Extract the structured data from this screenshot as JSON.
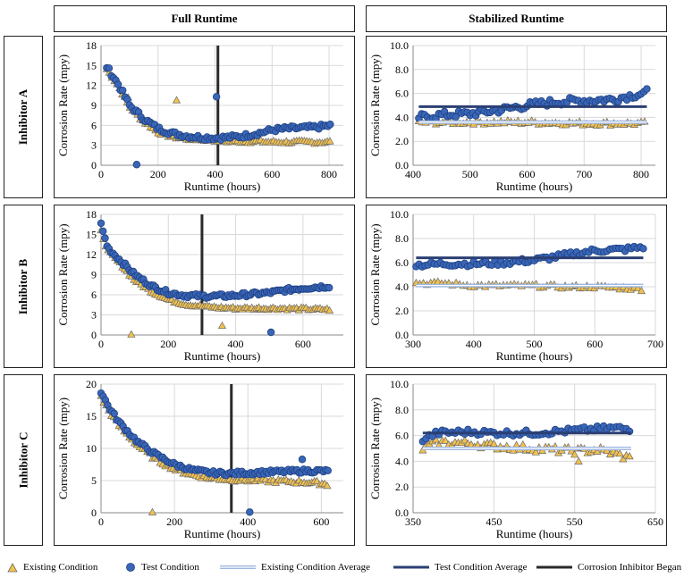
{
  "layout": {
    "col_headers": [
      "Full Runtime",
      "Stabilized Runtime"
    ],
    "row_headers": [
      "Inhibitor A",
      "Inhibitor B",
      "Inhibitor C"
    ]
  },
  "legend": {
    "existing": "Existing Condition",
    "test": "Test Condition",
    "existing_avg": "Existing Condition Average",
    "test_avg": "Test Condition Average",
    "inhibitor": "Corrosion Inhibitor Began"
  },
  "colors": {
    "existing_fill": "#f2c14e",
    "existing_edge": "#6b6b6b",
    "test_fill": "#3a66b8",
    "test_edge": "#1d3f80",
    "existing_avg": "#9fb7e0",
    "test_avg": "#2b3f73",
    "inhibitor_line": "#2a2a2a",
    "grid": "#d9d9d9"
  },
  "chart_data": [
    {
      "id": "A-full",
      "type": "scatter",
      "row": "Inhibitor A",
      "column": "Full Runtime",
      "xlabel": "Runtime (hours)",
      "ylabel": "Corrosion Rate (mpy)",
      "xlim": [
        0,
        850
      ],
      "ylim": [
        0,
        18
      ],
      "xticks": [
        0,
        200,
        400,
        600,
        800
      ],
      "yticks": [
        0,
        3,
        6,
        9,
        12,
        15,
        18
      ],
      "xtick_labels": [
        "0",
        "200",
        "400",
        "600",
        "800"
      ],
      "ytick_labels": [
        "0",
        "3",
        "6",
        "9",
        "12",
        "15",
        "18"
      ],
      "inhibitor_x": 410,
      "series": [
        {
          "key": "test",
          "marker": "circle",
          "curve": [
            [
              20,
              14.8
            ],
            [
              60,
              12.2
            ],
            [
              100,
              9.0
            ],
            [
              150,
              7.0
            ],
            [
              200,
              5.5
            ],
            [
              250,
              4.8
            ],
            [
              300,
              4.4
            ],
            [
              350,
              4.2
            ],
            [
              400,
              4.1
            ],
            [
              450,
              4.2
            ],
            [
              500,
              4.4
            ],
            [
              550,
              4.8
            ],
            [
              600,
              5.3
            ],
            [
              650,
              5.5
            ],
            [
              700,
              5.6
            ],
            [
              750,
              5.7
            ],
            [
              810,
              6.0
            ]
          ],
          "x_step": 8,
          "noise": 0.35,
          "outliers": [
            [
              125,
              0.1
            ],
            [
              405,
              10.3
            ]
          ]
        },
        {
          "key": "existing",
          "marker": "triangle",
          "curve": [
            [
              20,
              14.5
            ],
            [
              60,
              12.0
            ],
            [
              100,
              8.8
            ],
            [
              150,
              6.6
            ],
            [
              200,
              5.0
            ],
            [
              250,
              4.3
            ],
            [
              300,
              4.0
            ],
            [
              350,
              3.9
            ],
            [
              400,
              3.8
            ],
            [
              450,
              3.6
            ],
            [
              500,
              3.6
            ],
            [
              550,
              3.6
            ],
            [
              600,
              3.5
            ],
            [
              650,
              3.5
            ],
            [
              700,
              3.5
            ],
            [
              750,
              3.5
            ],
            [
              810,
              3.5
            ]
          ],
          "x_step": 9,
          "noise": 0.25,
          "outliers": [
            [
              265,
              9.8
            ],
            [
              95,
              10.2
            ]
          ]
        }
      ]
    },
    {
      "id": "A-stab",
      "type": "scatter",
      "row": "Inhibitor A",
      "column": "Stabilized Runtime",
      "xlabel": "Runtime (hours)",
      "ylabel": "Corrosion Rate (mpy)",
      "xlim": [
        400,
        825
      ],
      "ylim": [
        0,
        10
      ],
      "xticks": [
        400,
        500,
        600,
        700,
        800
      ],
      "yticks": [
        0,
        2,
        4,
        6,
        8,
        10
      ],
      "xtick_labels": [
        "400",
        "500",
        "600",
        "700",
        "800"
      ],
      "ytick_labels": [
        "0.0",
        "2.0",
        "4.0",
        "6.0",
        "8.0",
        "10.0"
      ],
      "test_avg": 4.9,
      "existing_avg": 3.6,
      "avg_x": [
        410,
        810
      ],
      "series": [
        {
          "key": "test",
          "marker": "circle",
          "curve": [
            [
              410,
              4.0
            ],
            [
              450,
              4.2
            ],
            [
              500,
              4.3
            ],
            [
              550,
              4.6
            ],
            [
              600,
              5.0
            ],
            [
              650,
              5.3
            ],
            [
              700,
              5.4
            ],
            [
              750,
              5.5
            ],
            [
              810,
              6.1
            ]
          ],
          "x_step": 5,
          "noise": 0.3,
          "outliers": []
        },
        {
          "key": "existing",
          "marker": "triangle",
          "curve": [
            [
              410,
              3.6
            ],
            [
              500,
              3.6
            ],
            [
              600,
              3.6
            ],
            [
              700,
              3.5
            ],
            [
              810,
              3.5
            ]
          ],
          "x_step": 6,
          "noise": 0.18,
          "outliers": []
        }
      ]
    },
    {
      "id": "B-full",
      "type": "scatter",
      "row": "Inhibitor B",
      "column": "Full Runtime",
      "xlabel": "Runtime (hours)",
      "ylabel": "Corrosion Rate (mpy)",
      "xlim": [
        0,
        720
      ],
      "ylim": [
        0,
        18
      ],
      "xticks": [
        0,
        200,
        400,
        600
      ],
      "yticks": [
        0,
        3,
        6,
        9,
        12,
        15,
        18
      ],
      "xtick_labels": [
        "0",
        "200",
        "400",
        "600"
      ],
      "ytick_labels": [
        "0",
        "3",
        "6",
        "9",
        "12",
        "15",
        "18"
      ],
      "inhibitor_x": 300,
      "series": [
        {
          "key": "test",
          "marker": "circle",
          "curve": [
            [
              0,
              16.5
            ],
            [
              20,
              13.0
            ],
            [
              60,
              11.0
            ],
            [
              100,
              9.0
            ],
            [
              150,
              7.3
            ],
            [
              200,
              6.3
            ],
            [
              250,
              5.9
            ],
            [
              300,
              5.8
            ],
            [
              350,
              5.8
            ],
            [
              400,
              5.9
            ],
            [
              450,
              6.1
            ],
            [
              500,
              6.3
            ],
            [
              550,
              6.7
            ],
            [
              600,
              7.0
            ],
            [
              680,
              7.3
            ]
          ],
          "x_step": 6,
          "noise": 0.3,
          "outliers": [
            [
              505,
              0.4
            ]
          ]
        },
        {
          "key": "existing",
          "marker": "triangle",
          "curve": [
            [
              0,
              15.5
            ],
            [
              20,
              12.6
            ],
            [
              60,
              10.5
            ],
            [
              100,
              8.2
            ],
            [
              150,
              6.5
            ],
            [
              200,
              5.3
            ],
            [
              250,
              4.6
            ],
            [
              300,
              4.3
            ],
            [
              350,
              4.1
            ],
            [
              400,
              4.0
            ],
            [
              500,
              4.0
            ],
            [
              600,
              3.9
            ],
            [
              680,
              3.8
            ]
          ],
          "x_step": 7,
          "noise": 0.22,
          "outliers": [
            [
              90,
              0.1
            ],
            [
              360,
              1.4
            ]
          ]
        }
      ]
    },
    {
      "id": "B-stab",
      "type": "scatter",
      "row": "Inhibitor B",
      "column": "Stabilized Runtime",
      "xlabel": "Runtime (hours)",
      "ylabel": "Corrosion Rate (mpy)",
      "xlim": [
        300,
        700
      ],
      "ylim": [
        0,
        10
      ],
      "xticks": [
        300,
        400,
        500,
        600,
        700
      ],
      "yticks": [
        0,
        2,
        4,
        6,
        8,
        10
      ],
      "xtick_labels": [
        "300",
        "400",
        "500",
        "600",
        "700"
      ],
      "ytick_labels": [
        "0.0",
        "2.0",
        "4.0",
        "6.0",
        "8.0",
        "10.0"
      ],
      "test_avg": 6.4,
      "existing_avg": 4.1,
      "avg_x": [
        305,
        680
      ],
      "series": [
        {
          "key": "test",
          "marker": "circle",
          "curve": [
            [
              305,
              5.8
            ],
            [
              350,
              5.9
            ],
            [
              400,
              5.9
            ],
            [
              450,
              6.0
            ],
            [
              500,
              6.2
            ],
            [
              550,
              6.6
            ],
            [
              600,
              7.0
            ],
            [
              650,
              7.1
            ],
            [
              680,
              7.3
            ]
          ],
          "x_step": 5,
          "noise": 0.22,
          "outliers": []
        },
        {
          "key": "existing",
          "marker": "triangle",
          "curve": [
            [
              305,
              4.3
            ],
            [
              350,
              4.3
            ],
            [
              400,
              4.1
            ],
            [
              450,
              4.1
            ],
            [
              500,
              4.1
            ],
            [
              550,
              4.0
            ],
            [
              600,
              4.0
            ],
            [
              650,
              3.9
            ],
            [
              680,
              3.8
            ]
          ],
          "x_step": 6,
          "noise": 0.15,
          "outliers": []
        }
      ]
    },
    {
      "id": "C-full",
      "type": "scatter",
      "row": "Inhibitor C",
      "column": "Full Runtime",
      "xlabel": "Runtime (hours)",
      "ylabel": "Corrosion Rate (mpy)",
      "xlim": [
        0,
        660
      ],
      "ylim": [
        0,
        20
      ],
      "xticks": [
        0,
        200,
        400,
        600
      ],
      "yticks": [
        0,
        5,
        10,
        15,
        20
      ],
      "xtick_labels": [
        "0",
        "200",
        "400",
        "600"
      ],
      "ytick_labels": [
        "0",
        "5",
        "10",
        "15",
        "20"
      ],
      "inhibitor_x": 355,
      "series": [
        {
          "key": "test",
          "marker": "circle",
          "curve": [
            [
              0,
              18.8
            ],
            [
              20,
              16.5
            ],
            [
              50,
              14.0
            ],
            [
              100,
              11.0
            ],
            [
              150,
              9.0
            ],
            [
              200,
              7.5
            ],
            [
              250,
              6.6
            ],
            [
              300,
              6.2
            ],
            [
              350,
              6.1
            ],
            [
              400,
              6.2
            ],
            [
              450,
              6.3
            ],
            [
              500,
              6.4
            ],
            [
              550,
              6.5
            ],
            [
              600,
              6.5
            ],
            [
              620,
              6.4
            ]
          ],
          "x_step": 6,
          "noise": 0.3,
          "outliers": [
            [
              405,
              0.1
            ],
            [
              548,
              8.3
            ]
          ]
        },
        {
          "key": "existing",
          "marker": "triangle",
          "curve": [
            [
              0,
              18.0
            ],
            [
              20,
              16.0
            ],
            [
              50,
              13.5
            ],
            [
              100,
              10.5
            ],
            [
              150,
              8.3
            ],
            [
              200,
              6.8
            ],
            [
              250,
              5.9
            ],
            [
              300,
              5.4
            ],
            [
              350,
              5.2
            ],
            [
              400,
              5.1
            ],
            [
              450,
              5.0
            ],
            [
              500,
              4.9
            ],
            [
              550,
              4.8
            ],
            [
              600,
              4.6
            ],
            [
              620,
              4.3
            ]
          ],
          "x_step": 7,
          "noise": 0.3,
          "outliers": [
            [
              140,
              0.1
            ]
          ]
        }
      ]
    },
    {
      "id": "C-stab",
      "type": "scatter",
      "row": "Inhibitor C",
      "column": "Stabilized Runtime",
      "xlabel": "Runtime (hours)",
      "ylabel": "Corrosion Rate (mpy)",
      "xlim": [
        350,
        650
      ],
      "ylim": [
        0,
        10
      ],
      "xticks": [
        350,
        450,
        550,
        650
      ],
      "yticks": [
        0,
        2,
        4,
        6,
        8,
        10
      ],
      "xtick_labels": [
        "350",
        "450",
        "550",
        "650"
      ],
      "ytick_labels": [
        "0.0",
        "2.0",
        "4.0",
        "6.0",
        "8.0",
        "10.0"
      ],
      "test_avg": 6.2,
      "existing_avg": 5.0,
      "avg_x": [
        362,
        620
      ],
      "series": [
        {
          "key": "test",
          "marker": "circle",
          "curve": [
            [
              362,
              5.7
            ],
            [
              380,
              6.2
            ],
            [
              420,
              6.3
            ],
            [
              450,
              6.2
            ],
            [
              500,
              6.2
            ],
            [
              550,
              6.4
            ],
            [
              600,
              6.6
            ],
            [
              620,
              6.5
            ]
          ],
          "x_step": 4,
          "noise": 0.22,
          "outliers": []
        },
        {
          "key": "existing",
          "marker": "triangle",
          "curve": [
            [
              362,
              5.0
            ],
            [
              380,
              5.5
            ],
            [
              420,
              5.4
            ],
            [
              450,
              5.2
            ],
            [
              500,
              5.0
            ],
            [
              550,
              4.8
            ],
            [
              580,
              4.9
            ],
            [
              600,
              4.6
            ],
            [
              620,
              4.2
            ]
          ],
          "x_step": 4,
          "noise": 0.28,
          "outliers": [
            [
              555,
              4.0
            ]
          ]
        }
      ]
    }
  ]
}
